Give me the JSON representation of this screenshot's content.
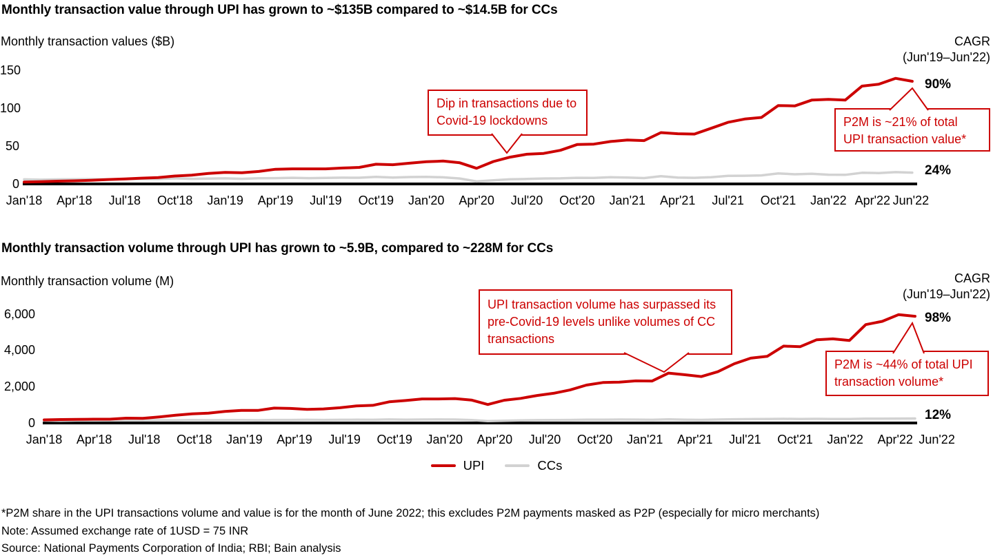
{
  "colors": {
    "upi": "#cc0000",
    "cc": "#d2d2d2",
    "axis": "#000000",
    "annotation": "#cc0000"
  },
  "chart_data": [
    {
      "type": "line",
      "title": "Monthly transaction value through UPI has grown to ~$135B compared to ~$14.5B for CCs",
      "ylabel": "Monthly transaction values ($B)",
      "cagr_header": "CAGR",
      "cagr_period": "(Jun'19–Jun'22)",
      "legend_position": "bottom",
      "grid": false,
      "ylim": [
        0,
        158
      ],
      "x": [
        "Jan'18",
        "Feb'18",
        "Mar'18",
        "Apr'18",
        "May'18",
        "Jun'18",
        "Jul'18",
        "Aug'18",
        "Sep'18",
        "Oct'18",
        "Nov'18",
        "Dec'18",
        "Jan'19",
        "Feb'19",
        "Mar'19",
        "Apr'19",
        "May'19",
        "Jun'19",
        "Jul'19",
        "Aug'19",
        "Sep'19",
        "Oct'19",
        "Nov'19",
        "Dec'19",
        "Jan'20",
        "Feb'20",
        "Mar'20",
        "Apr'20",
        "May'20",
        "Jun'20",
        "Jul'20",
        "Aug'20",
        "Sep'20",
        "Oct'20",
        "Nov'20",
        "Dec'20",
        "Jan'21",
        "Feb'21",
        "Mar'21",
        "Apr'21",
        "May'21",
        "Jun'21",
        "Jul'21",
        "Aug'21",
        "Sep'21",
        "Oct'21",
        "Nov'21",
        "Dec'21",
        "Jan'22",
        "Feb'22",
        "Mar'22",
        "Apr'22",
        "May'22",
        "Jun'22"
      ],
      "x_tick_indices": [
        0,
        3,
        6,
        9,
        12,
        15,
        18,
        21,
        24,
        27,
        30,
        33,
        36,
        39,
        42,
        45,
        48,
        51,
        53
      ],
      "x_tick_labels": [
        "Jan'18",
        "Apr'18",
        "Jul'18",
        "Oct'18",
        "Jan'19",
        "Apr'19",
        "Jul'19",
        "Oct'19",
        "Jan'20",
        "Apr'20",
        "Jul'20",
        "Oct'20",
        "Jan'21",
        "Apr'21",
        "Jul'21",
        "Oct'21",
        "Jan'22",
        "Apr'22",
        "Jun'22"
      ],
      "y_ticks": [
        {
          "label": "150",
          "value": 150
        },
        {
          "label": "100",
          "value": 100
        },
        {
          "label": "50",
          "value": 50
        },
        {
          "label": "0",
          "value": 0
        }
      ],
      "series": [
        {
          "name": "UPI",
          "color": "#cc0000",
          "cagr": "90%",
          "values": [
            2.1,
            2.5,
            3.2,
            3.6,
            4.4,
            5.4,
            6.1,
            7.2,
            8.0,
            10.0,
            11.2,
            13.5,
            14.7,
            14.3,
            16.0,
            18.9,
            19.5,
            19.5,
            19.5,
            20.5,
            21.4,
            25.5,
            24.9,
            26.9,
            28.8,
            29.7,
            27.5,
            20.2,
            29.1,
            34.9,
            38.7,
            39.8,
            43.9,
            51.5,
            52.1,
            55.5,
            57.5,
            56.7,
            67.3,
            65.8,
            65.4,
            73.0,
            80.8,
            85.2,
            87.3,
            102.9,
            102.5,
            110.2,
            111.1,
            110.2,
            128.6,
            131.1,
            138.9,
            135.0
          ]
        },
        {
          "name": "CCs",
          "color": "#d2d2d2",
          "cagr": "24%",
          "values": [
            5.5,
            5.1,
            5.5,
            5.6,
            5.9,
            5.5,
            5.8,
            6.1,
            6.0,
            6.9,
            6.3,
            6.5,
            6.9,
            6.3,
            7.0,
            7.2,
            7.6,
            7.2,
            7.5,
            7.8,
            7.7,
            8.8,
            7.9,
            8.6,
            8.9,
            8.3,
            6.7,
            2.8,
            4.3,
            5.7,
            6.1,
            6.7,
            6.9,
            7.6,
            7.5,
            8.4,
            8.0,
            7.3,
            9.7,
            7.9,
            7.6,
            8.4,
            10.2,
            10.4,
            10.8,
            13.5,
            12.3,
            12.9,
            11.7,
            11.5,
            14.3,
            13.9,
            15.1,
            14.5
          ]
        }
      ],
      "annotations": {
        "dip": "Dip in transactions due to Covid-19 lockdowns",
        "p2m": "P2M is ~21% of total UPI transaction value*"
      }
    },
    {
      "type": "line",
      "title": "Monthly transaction volume through UPI has grown to ~5.9B, compared to ~228M for CCs",
      "ylabel": "Monthly transaction volume (M)",
      "cagr_header": "CAGR",
      "cagr_period": "(Jun'19–Jun'22)",
      "legend_position": "bottom",
      "grid": false,
      "ylim": [
        0,
        6600
      ],
      "x": [
        "Jan'18",
        "Feb'18",
        "Mar'18",
        "Apr'18",
        "May'18",
        "Jun'18",
        "Jul'18",
        "Aug'18",
        "Sep'18",
        "Oct'18",
        "Nov'18",
        "Dec'18",
        "Jan'19",
        "Feb'19",
        "Mar'19",
        "Apr'19",
        "May'19",
        "Jun'19",
        "Jul'19",
        "Aug'19",
        "Sep'19",
        "Oct'19",
        "Nov'19",
        "Dec'19",
        "Jan'20",
        "Feb'20",
        "Mar'20",
        "Apr'20",
        "May'20",
        "Jun'20",
        "Jul'20",
        "Aug'20",
        "Sep'20",
        "Oct'20",
        "Nov'20",
        "Dec'20",
        "Jan'21",
        "Feb'21",
        "Mar'21",
        "Apr'21",
        "May'21",
        "Jun'21",
        "Jul'21",
        "Aug'21",
        "Sep'21",
        "Oct'21",
        "Nov'21",
        "Dec'21",
        "Jan'22",
        "Feb'22",
        "Mar'22",
        "Apr'22",
        "May'22",
        "Jun'22"
      ],
      "x_tick_indices": [
        0,
        3,
        6,
        9,
        12,
        15,
        18,
        21,
        24,
        27,
        30,
        33,
        36,
        39,
        42,
        45,
        48,
        51,
        53
      ],
      "x_tick_labels": [
        "Jan'18",
        "Apr'18",
        "Jul'18",
        "Oct'18",
        "Jan'19",
        "Apr'19",
        "Jul'19",
        "Oct'19",
        "Jan'20",
        "Apr'20",
        "Jul'20",
        "Oct'20",
        "Jan'21",
        "Apr'21",
        "Jul'21",
        "Oct'21",
        "Jan'22",
        "Apr'22",
        "Jun'22"
      ],
      "y_ticks": [
        {
          "label": "6,000",
          "value": 6000
        },
        {
          "label": "4,000",
          "value": 4000
        },
        {
          "label": "2,000",
          "value": 2000
        },
        {
          "label": "0",
          "value": 0
        }
      ],
      "series": [
        {
          "name": "UPI",
          "color": "#cc0000",
          "cagr": "98%",
          "values": [
            152,
            171,
            178,
            190,
            189,
            246,
            235,
            312,
            406,
            482,
            525,
            620,
            673,
            674,
            800,
            782,
            733,
            754,
            822,
            918,
            955,
            1148,
            1219,
            1308,
            1305,
            1326,
            1247,
            999,
            1234,
            1337,
            1497,
            1619,
            1800,
            2071,
            2210,
            2234,
            2303,
            2293,
            2732,
            2641,
            2540,
            2808,
            3247,
            3556,
            3654,
            4219,
            4186,
            4566,
            4617,
            4527,
            5405,
            5583,
            5955,
            5863
          ]
        },
        {
          "name": "CCs",
          "color": "#d2d2d2",
          "cagr": "12%",
          "values": [
            117,
            108,
            119,
            119,
            127,
            120,
            127,
            133,
            131,
            143,
            133,
            138,
            145,
            134,
            150,
            148,
            154,
            148,
            155,
            159,
            156,
            174,
            163,
            172,
            176,
            170,
            141,
            85,
            105,
            125,
            135,
            143,
            148,
            161,
            158,
            172,
            167,
            155,
            181,
            165,
            153,
            170,
            187,
            195,
            198,
            209,
            201,
            210,
            202,
            198,
            220,
            216,
            224,
            228
          ]
        }
      ],
      "annotations": {
        "surpass": "UPI transaction volume has surpassed its pre-Covid-19 levels unlike volumes of CC transactions",
        "p2m": "P2M is ~44% of total UPI transaction volume*"
      }
    }
  ],
  "footnotes": [
    "*P2M share in the UPI transactions volume and value is for the month of June 2022; this excludes P2M payments masked as P2P (especially for micro merchants)",
    "Note: Assumed exchange rate of 1USD = 75 INR",
    "Source: National Payments Corporation of India; RBI; Bain analysis"
  ]
}
